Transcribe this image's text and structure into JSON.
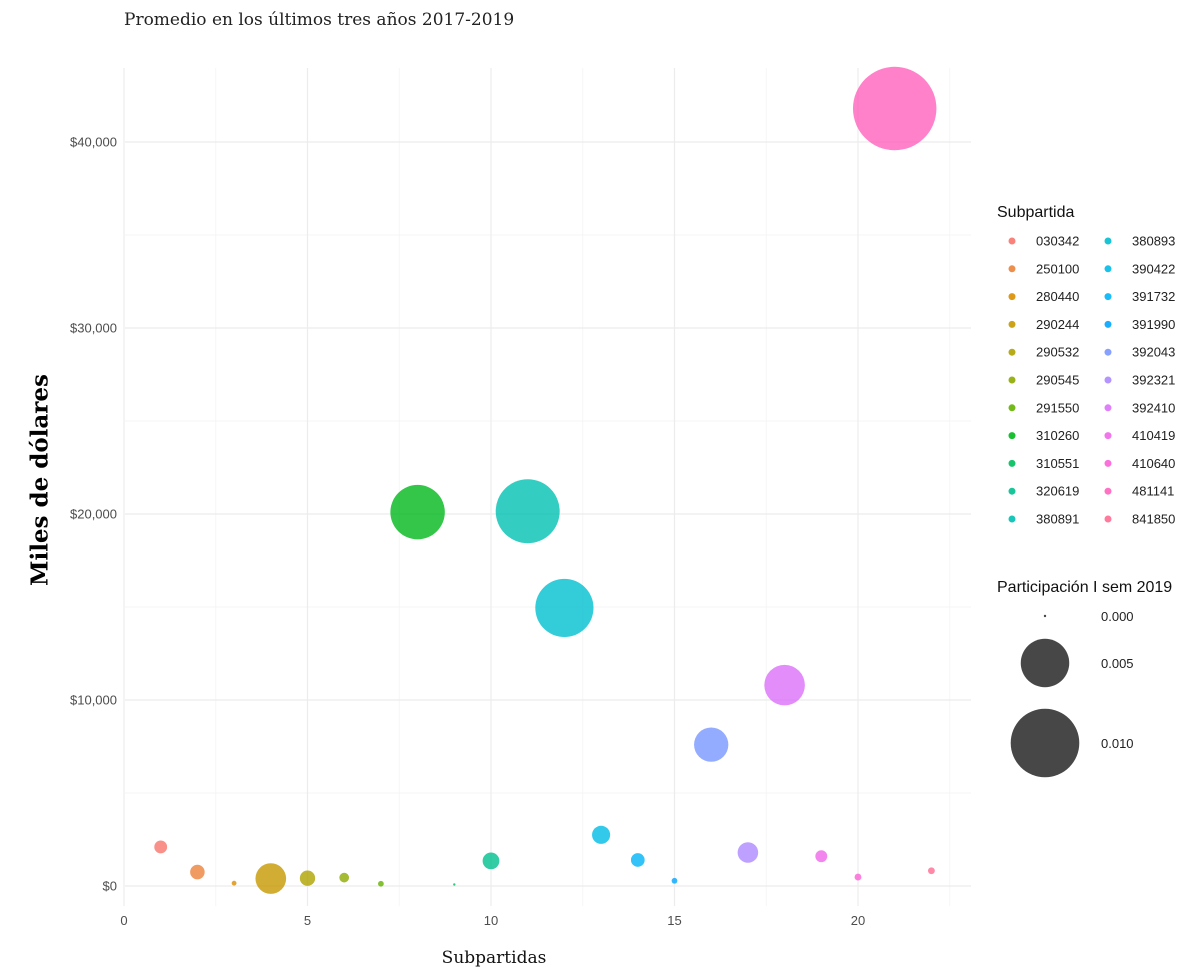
{
  "chart_data": {
    "type": "scatter",
    "subtitle": "Promedio en los últimos tres años 2017-2019",
    "xlabel": "Subpartidas",
    "ylabel": "Miles de dólares",
    "xlim": [
      0,
      23
    ],
    "ylim": [
      -1000,
      44000
    ],
    "x_ticks": [
      0,
      5,
      10,
      15,
      20
    ],
    "x_tick_labels": [
      "0",
      "5",
      "10",
      "15",
      "20"
    ],
    "y_ticks": [
      0,
      10000,
      20000,
      30000,
      40000
    ],
    "y_tick_labels": [
      "$0",
      "$10,000",
      "$20,000",
      "$30,000",
      "$40,000"
    ],
    "grid": true,
    "legend_position": "right",
    "color_legend_title": "Subpartida",
    "size_legend_title": "Participación I sem 2019",
    "size_legend": [
      {
        "label": "0.000",
        "value": 0.0
      },
      {
        "label": "0.005",
        "value": 0.005
      },
      {
        "label": "0.010",
        "value": 0.01
      }
    ],
    "points": [
      {
        "x": 1,
        "y": 2100,
        "size": 0.00035,
        "subpartida": "030342",
        "color": "#F8766D"
      },
      {
        "x": 2,
        "y": 750,
        "size": 0.00045,
        "subpartida": "250100",
        "color": "#EC8239"
      },
      {
        "x": 3,
        "y": 150,
        "size": 5e-05,
        "subpartida": "280440",
        "color": "#DB8E00"
      },
      {
        "x": 4,
        "y": 400,
        "size": 0.002,
        "subpartida": "290244",
        "color": "#C79800"
      },
      {
        "x": 5,
        "y": 420,
        "size": 0.0005,
        "subpartida": "290532",
        "color": "#AEA200"
      },
      {
        "x": 6,
        "y": 450,
        "size": 0.0002,
        "subpartida": "290545",
        "color": "#8FAA00"
      },
      {
        "x": 7,
        "y": 120,
        "size": 7e-05,
        "subpartida": "291550",
        "color": "#64B200"
      },
      {
        "x": 8,
        "y": 20100,
        "size": 0.0063,
        "subpartida": "310260",
        "color": "#00B81B"
      },
      {
        "x": 9,
        "y": 80,
        "size": 1e-05,
        "subpartida": "310551",
        "color": "#00BD5C"
      },
      {
        "x": 10,
        "y": 1350,
        "size": 0.0006,
        "subpartida": "320619",
        "color": "#00C08E"
      },
      {
        "x": 11,
        "y": 20150,
        "size": 0.0087,
        "subpartida": "380891",
        "color": "#00C1B2"
      },
      {
        "x": 12,
        "y": 14950,
        "size": 0.0072,
        "subpartida": "380893",
        "color": "#00BFD0"
      },
      {
        "x": 13,
        "y": 2750,
        "size": 0.0007,
        "subpartida": "390422",
        "color": "#00BBE6"
      },
      {
        "x": 14,
        "y": 1400,
        "size": 0.0004,
        "subpartida": "391732",
        "color": "#00B4F8"
      },
      {
        "x": 15,
        "y": 280,
        "size": 7e-05,
        "subpartida": "391990",
        "color": "#00A5FF"
      },
      {
        "x": 16,
        "y": 7600,
        "size": 0.0025,
        "subpartida": "392043",
        "color": "#7997FF"
      },
      {
        "x": 17,
        "y": 1800,
        "size": 0.0009,
        "subpartida": "392321",
        "color": "#AC88FF"
      },
      {
        "x": 18,
        "y": 10800,
        "size": 0.0035,
        "subpartida": "392410",
        "color": "#DC71FA"
      },
      {
        "x": 19,
        "y": 1600,
        "size": 0.0003,
        "subpartida": "410419",
        "color": "#F066EA"
      },
      {
        "x": 20,
        "y": 480,
        "size": 0.0001,
        "subpartida": "410640",
        "color": "#FB61D7"
      },
      {
        "x": 21,
        "y": 41800,
        "size": 0.0148,
        "subpartida": "481141",
        "color": "#FF62BC"
      },
      {
        "x": 22,
        "y": 820,
        "size": 0.0001,
        "subpartida": "841850",
        "color": "#FF6C91"
      }
    ]
  }
}
